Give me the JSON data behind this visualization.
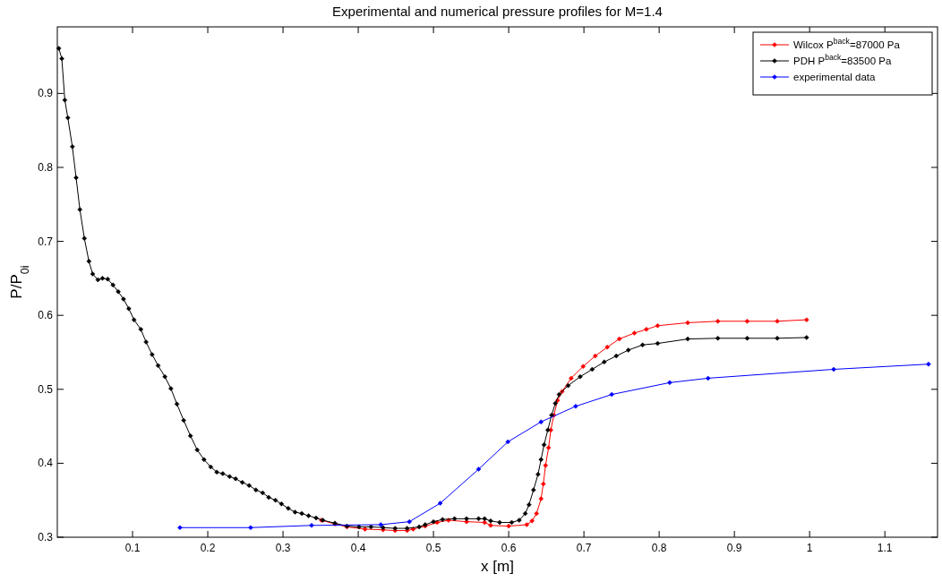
{
  "chart_data": {
    "type": "line",
    "title": "Experimental and numerical pressure profiles for M=1.4",
    "xlabel": "x [m]",
    "ylabel": "P/P$_{0i}$",
    "xlim": [
      0,
      1.17
    ],
    "ylim": [
      0.3,
      0.99
    ],
    "xticks": [
      0.1,
      0.2,
      0.3,
      0.4,
      0.5,
      0.6,
      0.7,
      0.8,
      0.9,
      1,
      1.1
    ],
    "yticks": [
      0.3,
      0.4,
      0.5,
      0.6,
      0.7,
      0.8,
      0.9
    ],
    "grid": false,
    "legend": "top right",
    "marker": "diamond",
    "line_style": "solid",
    "series": [
      {
        "name": "Wilcox P$^{back}$=87000 Pa",
        "color": "#ff0000",
        "x": [
          0.351,
          0.369,
          0.385,
          0.409,
          0.433,
          0.449,
          0.465,
          0.473,
          0.489,
          0.505,
          0.52,
          0.544,
          0.568,
          0.576,
          0.6,
          0.624,
          0.631,
          0.637,
          0.643,
          0.646,
          0.649,
          0.653,
          0.656,
          0.66,
          0.665,
          0.671,
          0.683,
          0.699,
          0.715,
          0.731,
          0.747,
          0.767,
          0.783,
          0.798,
          0.838,
          0.878,
          0.917,
          0.957,
          0.996
        ],
        "values": [
          0.323,
          0.318,
          0.314,
          0.311,
          0.31,
          0.309,
          0.309,
          0.311,
          0.315,
          0.32,
          0.323,
          0.321,
          0.32,
          0.316,
          0.315,
          0.317,
          0.322,
          0.332,
          0.352,
          0.372,
          0.397,
          0.421,
          0.445,
          0.465,
          0.485,
          0.497,
          0.515,
          0.531,
          0.545,
          0.557,
          0.568,
          0.576,
          0.581,
          0.586,
          0.59,
          0.592,
          0.592,
          0.592,
          0.594
        ]
      },
      {
        "name": "PDH P$^{back}$=83500 Pa",
        "color": "#000000",
        "x": [
          0.002,
          0.006,
          0.01,
          0.014,
          0.02,
          0.025,
          0.03,
          0.036,
          0.042,
          0.047,
          0.054,
          0.06,
          0.067,
          0.074,
          0.081,
          0.088,
          0.095,
          0.102,
          0.111,
          0.118,
          0.126,
          0.134,
          0.143,
          0.151,
          0.159,
          0.168,
          0.177,
          0.186,
          0.195,
          0.204,
          0.212,
          0.22,
          0.229,
          0.237,
          0.246,
          0.255,
          0.264,
          0.273,
          0.281,
          0.29,
          0.298,
          0.307,
          0.316,
          0.325,
          0.334,
          0.344,
          0.353,
          0.369,
          0.385,
          0.401,
          0.417,
          0.433,
          0.449,
          0.465,
          0.481,
          0.489,
          0.5,
          0.512,
          0.528,
          0.544,
          0.56,
          0.568,
          0.576,
          0.588,
          0.604,
          0.614,
          0.622,
          0.627,
          0.633,
          0.639,
          0.643,
          0.647,
          0.652,
          0.657,
          0.662,
          0.667,
          0.679,
          0.695,
          0.711,
          0.727,
          0.743,
          0.759,
          0.778,
          0.798,
          0.838,
          0.878,
          0.917,
          0.957,
          0.996
        ],
        "values": [
          0.961,
          0.947,
          0.891,
          0.867,
          0.828,
          0.786,
          0.743,
          0.704,
          0.673,
          0.656,
          0.648,
          0.65,
          0.649,
          0.641,
          0.632,
          0.622,
          0.609,
          0.594,
          0.581,
          0.564,
          0.547,
          0.532,
          0.517,
          0.501,
          0.48,
          0.458,
          0.437,
          0.418,
          0.405,
          0.395,
          0.388,
          0.386,
          0.382,
          0.379,
          0.374,
          0.37,
          0.364,
          0.36,
          0.354,
          0.35,
          0.345,
          0.339,
          0.334,
          0.332,
          0.329,
          0.326,
          0.323,
          0.319,
          0.315,
          0.314,
          0.314,
          0.313,
          0.312,
          0.312,
          0.314,
          0.317,
          0.321,
          0.324,
          0.325,
          0.325,
          0.325,
          0.325,
          0.322,
          0.32,
          0.32,
          0.323,
          0.332,
          0.344,
          0.364,
          0.385,
          0.405,
          0.425,
          0.445,
          0.465,
          0.481,
          0.493,
          0.505,
          0.517,
          0.527,
          0.537,
          0.545,
          0.553,
          0.56,
          0.562,
          0.568,
          0.569,
          0.569,
          0.569,
          0.57
        ]
      },
      {
        "name": "experimental data",
        "color": "#0000ff",
        "x": [
          0.163,
          0.257,
          0.338,
          0.43,
          0.468,
          0.509,
          0.56,
          0.599,
          0.643,
          0.689,
          0.737,
          0.814,
          0.865,
          1.032,
          1.158
        ],
        "values": [
          0.313,
          0.313,
          0.316,
          0.317,
          0.321,
          0.346,
          0.392,
          0.429,
          0.456,
          0.477,
          0.493,
          0.509,
          0.515,
          0.527,
          0.534
        ]
      }
    ]
  }
}
